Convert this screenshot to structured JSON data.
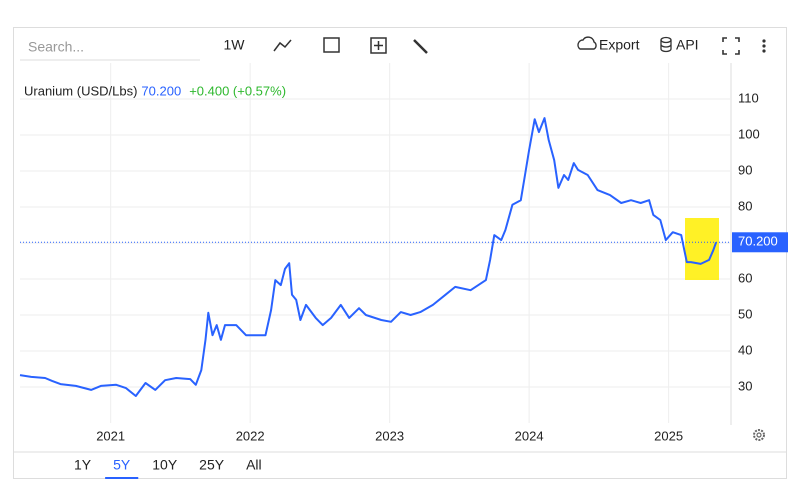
{
  "ui": {
    "search": "Search...",
    "interval": "1W",
    "export": "Export",
    "api": "API",
    "ranges": [
      "1Y",
      "5Y",
      "10Y",
      "25Y",
      "All"
    ],
    "selected_range": "5Y"
  },
  "chart_data": {
    "type": "line",
    "title": "Uranium (USD/Lbs)",
    "change": "+0.400 (+0.57%)",
    "last": {
      "value": 70.2,
      "label": "70.200"
    },
    "xlim": [
      2020.35,
      2025.44
    ],
    "xticks": [
      2021,
      2022,
      2023,
      2024,
      2025
    ],
    "ylim": [
      20,
      120
    ],
    "yticks": [
      30,
      40,
      50,
      60,
      70,
      80,
      90,
      100,
      110
    ],
    "grid": true,
    "series": [
      {
        "name": "Uranium",
        "color": "#2962ff",
        "x": [
          2020.35,
          2020.43,
          2020.53,
          2020.58,
          2020.64,
          2020.75,
          2020.86,
          2020.93,
          2021.04,
          2021.11,
          2021.18,
          2021.25,
          2021.32,
          2021.39,
          2021.47,
          2021.57,
          2021.61,
          2021.65,
          2021.68,
          2021.7,
          2021.73,
          2021.76,
          2021.79,
          2021.82,
          2021.9,
          2021.97,
          2022.11,
          2022.15,
          2022.18,
          2022.22,
          2022.25,
          2022.28,
          2022.3,
          2022.33,
          2022.36,
          2022.4,
          2022.47,
          2022.52,
          2022.58,
          2022.65,
          2022.71,
          2022.78,
          2022.83,
          2022.94,
          2023.01,
          2023.08,
          2023.15,
          2023.22,
          2023.31,
          2023.4,
          2023.47,
          2023.58,
          2023.69,
          2023.72,
          2023.75,
          2023.8,
          2023.83,
          2023.88,
          2023.94,
          2023.97,
          2024.0,
          2024.04,
          2024.07,
          2024.11,
          2024.14,
          2024.18,
          2024.21,
          2024.25,
          2024.28,
          2024.32,
          2024.35,
          2024.42,
          2024.49,
          2024.58,
          2024.66,
          2024.73,
          2024.8,
          2024.86,
          2024.89,
          2024.94,
          2024.98,
          2025.03,
          2025.09,
          2025.13,
          2025.16,
          2025.23,
          2025.29,
          2025.32,
          2025.34
        ],
        "values": [
          33.3,
          32.8,
          32.5,
          31.7,
          30.8,
          30.3,
          29.2,
          30.3,
          30.6,
          29.7,
          27.5,
          31.1,
          29.2,
          31.9,
          32.5,
          32.2,
          30.6,
          34.7,
          43.1,
          50.6,
          44.4,
          47.2,
          43.1,
          47.2,
          47.2,
          44.4,
          44.4,
          51.4,
          59.7,
          58.3,
          62.8,
          64.4,
          55.6,
          54.2,
          48.6,
          52.8,
          49.2,
          47.2,
          49.2,
          52.8,
          49.2,
          51.9,
          50,
          48.6,
          48.1,
          50.8,
          50,
          50.8,
          52.8,
          55.6,
          57.8,
          56.9,
          59.7,
          65.3,
          72.2,
          70.8,
          73.6,
          80.6,
          81.9,
          88.9,
          95.8,
          104.4,
          100.8,
          104.7,
          98.6,
          93,
          85.3,
          88.9,
          87.5,
          92.2,
          90.3,
          88.9,
          84.7,
          83.3,
          81.1,
          81.9,
          81.1,
          81.9,
          77.8,
          76.4,
          70.8,
          73,
          72.2,
          64.7,
          64.7,
          64.2,
          65.3,
          68,
          70.2
        ]
      }
    ]
  }
}
